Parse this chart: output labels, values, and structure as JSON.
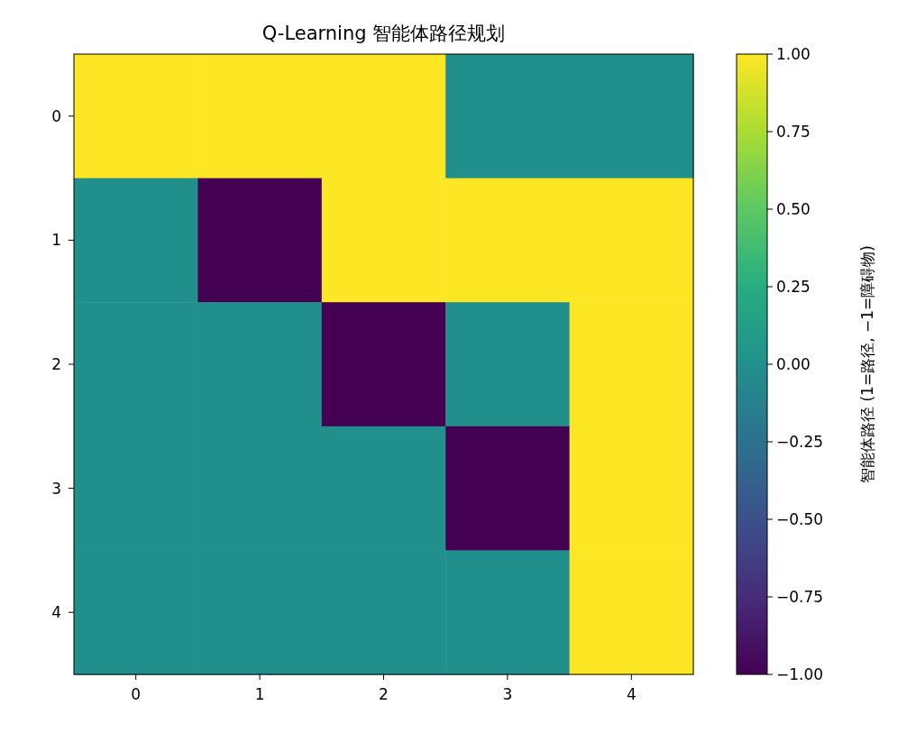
{
  "chart_data": {
    "type": "heatmap",
    "title": "Q-Learning 智能体路径规划",
    "clabel": "智能体路径 (1=路径, −1=障碍物)",
    "categories": [
      "0",
      "1",
      "2",
      "3",
      "4"
    ],
    "y_categories": [
      "0",
      "1",
      "2",
      "3",
      "4"
    ],
    "cells": [
      [
        1,
        1,
        1,
        0,
        0
      ],
      [
        0,
        -1,
        1,
        1,
        1
      ],
      [
        0,
        0,
        -1,
        0,
        1
      ],
      [
        0,
        0,
        0,
        -1,
        1
      ],
      [
        0,
        0,
        0,
        0,
        1
      ]
    ],
    "clim": [
      -1,
      1
    ],
    "cticks": [
      {
        "value": -1,
        "label": "−1.00"
      },
      {
        "value": -0.75,
        "label": "−0.75"
      },
      {
        "value": -0.5,
        "label": "−0.50"
      },
      {
        "value": -0.25,
        "label": "−0.25"
      },
      {
        "value": 0,
        "label": "0.00"
      },
      {
        "value": 0.25,
        "label": "0.25"
      },
      {
        "value": 0.5,
        "label": "0.50"
      },
      {
        "value": 0.75,
        "label": "0.75"
      },
      {
        "value": 1,
        "label": "1.00"
      }
    ]
  }
}
